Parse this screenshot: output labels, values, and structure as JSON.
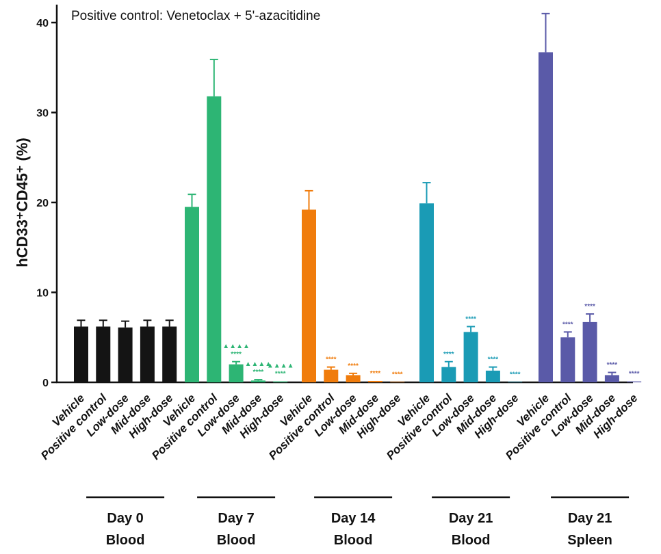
{
  "chart_data": {
    "type": "bar",
    "title": "",
    "annotation": "Positive control: Venetoclax + 5'-azacitidine",
    "ylabel": "hCD33⁺CD45⁺ (%)",
    "ylim": [
      0,
      42
    ],
    "yticks": [
      0,
      10,
      20,
      30,
      40
    ],
    "categories": [
      "Vehicle",
      "Positive control",
      "Low-dose",
      "Mid-dose",
      "High-dose"
    ],
    "groups": [
      {
        "label_line1": "Day 0",
        "label_line2": "Blood",
        "color": "#141414",
        "values": [
          6.2,
          6.2,
          6.1,
          6.2,
          6.2
        ],
        "errors": [
          0.7,
          0.7,
          0.7,
          0.7,
          0.7
        ],
        "sig": [
          "",
          "",
          "",
          "",
          ""
        ],
        "sig2": [
          "",
          "",
          "",
          "",
          ""
        ]
      },
      {
        "label_line1": "Day 7",
        "label_line2": "Blood",
        "color": "#2db574",
        "values": [
          19.5,
          31.8,
          2.0,
          0.2,
          0.1
        ],
        "errors": [
          1.4,
          4.1,
          0.3,
          0.1,
          0.05
        ],
        "sig": [
          "",
          "",
          "****",
          "****",
          "****"
        ],
        "sig2": [
          "",
          "",
          "▲▲▲▲",
          "▲▲▲▲",
          "▲▲▲▲"
        ]
      },
      {
        "label_line1": "Day 14",
        "label_line2": "Blood",
        "color": "#f07c0c",
        "values": [
          19.2,
          1.4,
          0.8,
          0.15,
          0.05
        ],
        "errors": [
          2.1,
          0.3,
          0.2,
          0.05,
          0.05
        ],
        "sig": [
          "",
          "****",
          "****",
          "****",
          "****"
        ],
        "sig2": [
          "",
          "",
          "",
          "",
          ""
        ]
      },
      {
        "label_line1": "Day 21",
        "label_line2": "Blood",
        "color": "#1a9bb5",
        "values": [
          19.9,
          1.7,
          5.6,
          1.3,
          0.05
        ],
        "errors": [
          2.3,
          0.6,
          0.6,
          0.4,
          0.05
        ],
        "sig": [
          "",
          "****",
          "****",
          "****",
          "****"
        ],
        "sig2": [
          "",
          "",
          "",
          "",
          ""
        ]
      },
      {
        "label_line1": "Day 21",
        "label_line2": "Spleen",
        "color": "#5a5aa8",
        "values": [
          36.7,
          5.0,
          6.7,
          0.8,
          0.1
        ],
        "errors": [
          4.3,
          0.6,
          0.9,
          0.3,
          0.05
        ],
        "sig": [
          "",
          "****",
          "****",
          "****",
          "****"
        ],
        "sig2": [
          "",
          "",
          "",
          "",
          ""
        ]
      }
    ]
  }
}
